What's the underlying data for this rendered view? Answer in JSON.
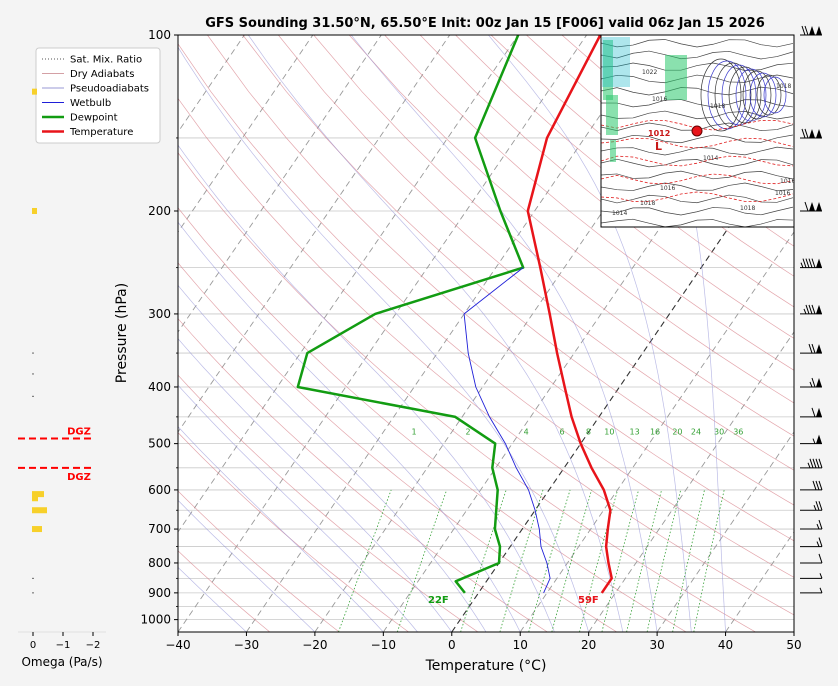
{
  "title": "GFS Sounding 31.50°N, 65.50°E Init: 00z Jan 15 [F006] valid 06z Jan 15 2026",
  "xlabel": "Temperature (°C)",
  "ylabel": "Pressure (hPa)",
  "omega_label": "Omega (Pa/s)",
  "colors": {
    "temperature": "#e8141a",
    "dewpoint": "#129c12",
    "wetbulb": "#1f1fd8",
    "dry_adiabat": "#d4777f",
    "moist_adiabat": "#8f8fd6",
    "mixing_ratio": "#35a035",
    "dgz": "#ff0000",
    "omega_bar": "#f7d02a"
  },
  "legend": {
    "placement": "upper-left",
    "items": [
      {
        "label": "Sat. Mix. Ratio",
        "style": "dotted",
        "color": "#555555"
      },
      {
        "label": "Dry Adiabats",
        "style": "solid",
        "color": "#d4a0a5"
      },
      {
        "label": "Pseudoadiabats",
        "style": "solid",
        "color": "#9a9ad6"
      },
      {
        "label": "Wetbulb",
        "style": "solid",
        "color": "#1f1fd8"
      },
      {
        "label": "Dewpoint",
        "style": "thick",
        "color": "#129c12"
      },
      {
        "label": "Temperature",
        "style": "thick",
        "color": "#e8141a"
      }
    ]
  },
  "chart_data": {
    "type": "line",
    "chart_kind": "skew-T log-p",
    "y_scale": "log",
    "xlim": [
      -40,
      50
    ],
    "ylim": [
      1050,
      100
    ],
    "x_ticks": [
      "−40",
      "−30",
      "−20",
      "−10",
      "0",
      "10",
      "20",
      "30",
      "40",
      "50"
    ],
    "y_ticks": [
      "100",
      "200",
      "300",
      "400",
      "500",
      "600",
      "700",
      "800",
      "900",
      "1000"
    ],
    "series": [
      {
        "name": "Temperature",
        "points": [
          [
            900,
            18
          ],
          [
            850,
            18
          ],
          [
            800,
            16
          ],
          [
            750,
            14
          ],
          [
            700,
            12.5
          ],
          [
            650,
            11
          ],
          [
            600,
            8
          ],
          [
            550,
            4
          ],
          [
            500,
            0
          ],
          [
            450,
            -4
          ],
          [
            400,
            -8
          ],
          [
            350,
            -12.5
          ],
          [
            300,
            -17.5
          ],
          [
            250,
            -23.5
          ],
          [
            200,
            -31
          ],
          [
            150,
            -35.5
          ],
          [
            100,
            -38
          ]
        ]
      },
      {
        "name": "Dewpoint",
        "points": [
          [
            900,
            -2
          ],
          [
            860,
            -4.5
          ],
          [
            800,
            0
          ],
          [
            750,
            -1.5
          ],
          [
            700,
            -4
          ],
          [
            600,
            -7.5
          ],
          [
            550,
            -10.5
          ],
          [
            500,
            -12.5
          ],
          [
            450,
            -21
          ],
          [
            400,
            -47
          ],
          [
            350,
            -49
          ],
          [
            300,
            -43
          ],
          [
            250,
            -26
          ],
          [
            200,
            -35
          ],
          [
            150,
            -46
          ],
          [
            100,
            -50
          ]
        ]
      },
      {
        "name": "Wetbulb",
        "points": [
          [
            900,
            9.5
          ],
          [
            850,
            9
          ],
          [
            800,
            7
          ],
          [
            750,
            4.5
          ],
          [
            700,
            2.5
          ],
          [
            650,
            0
          ],
          [
            600,
            -3
          ],
          [
            550,
            -7
          ],
          [
            500,
            -11
          ],
          [
            450,
            -16
          ],
          [
            400,
            -21
          ],
          [
            350,
            -25.5
          ],
          [
            300,
            -30
          ],
          [
            250,
            -26
          ]
        ]
      }
    ],
    "surface_labels": {
      "temperature": "59F",
      "dewpoint": "22F"
    },
    "mixing_ratio_labels": [
      "1",
      "2",
      "4",
      "6",
      "8",
      "10",
      "13",
      "16",
      "20",
      "24",
      "30",
      "36"
    ],
    "dgz_label": "DGZ",
    "dgz_bounds_hpa": [
      490,
      550
    ],
    "omega": {
      "x_ticks": [
        "0",
        "−1",
        "−2"
      ],
      "values": [
        {
          "p": 125,
          "w": -0.05
        },
        {
          "p": 200,
          "w": -0.05
        },
        {
          "p": 610,
          "w": -0.12
        },
        {
          "p": 650,
          "w": -0.15
        },
        {
          "p": 700,
          "w": -0.1
        },
        {
          "p": 620,
          "w": -0.06
        }
      ]
    },
    "wind_barbs": [
      {
        "p": 100,
        "speed_kt": 120
      },
      {
        "p": 150,
        "speed_kt": 120
      },
      {
        "p": 200,
        "speed_kt": 110
      },
      {
        "p": 250,
        "speed_kt": 95
      },
      {
        "p": 300,
        "speed_kt": 85
      },
      {
        "p": 350,
        "speed_kt": 70
      },
      {
        "p": 400,
        "speed_kt": 65
      },
      {
        "p": 450,
        "speed_kt": 60
      },
      {
        "p": 500,
        "speed_kt": 55
      },
      {
        "p": 550,
        "speed_kt": 45
      },
      {
        "p": 600,
        "speed_kt": 30
      },
      {
        "p": 650,
        "speed_kt": 25
      },
      {
        "p": 700,
        "speed_kt": 15
      },
      {
        "p": 750,
        "speed_kt": 15
      },
      {
        "p": 800,
        "speed_kt": 10
      },
      {
        "p": 850,
        "speed_kt": 5
      },
      {
        "p": 900,
        "speed_kt": 5
      }
    ]
  },
  "inset_map": {
    "low_label": "L",
    "low_pressure": "1012",
    "isobar_labels": [
      "1022",
      "1016",
      "1018",
      "1014",
      "1016",
      "1018",
      "1016",
      "1016",
      "1018",
      "1014",
      "1018"
    ]
  }
}
